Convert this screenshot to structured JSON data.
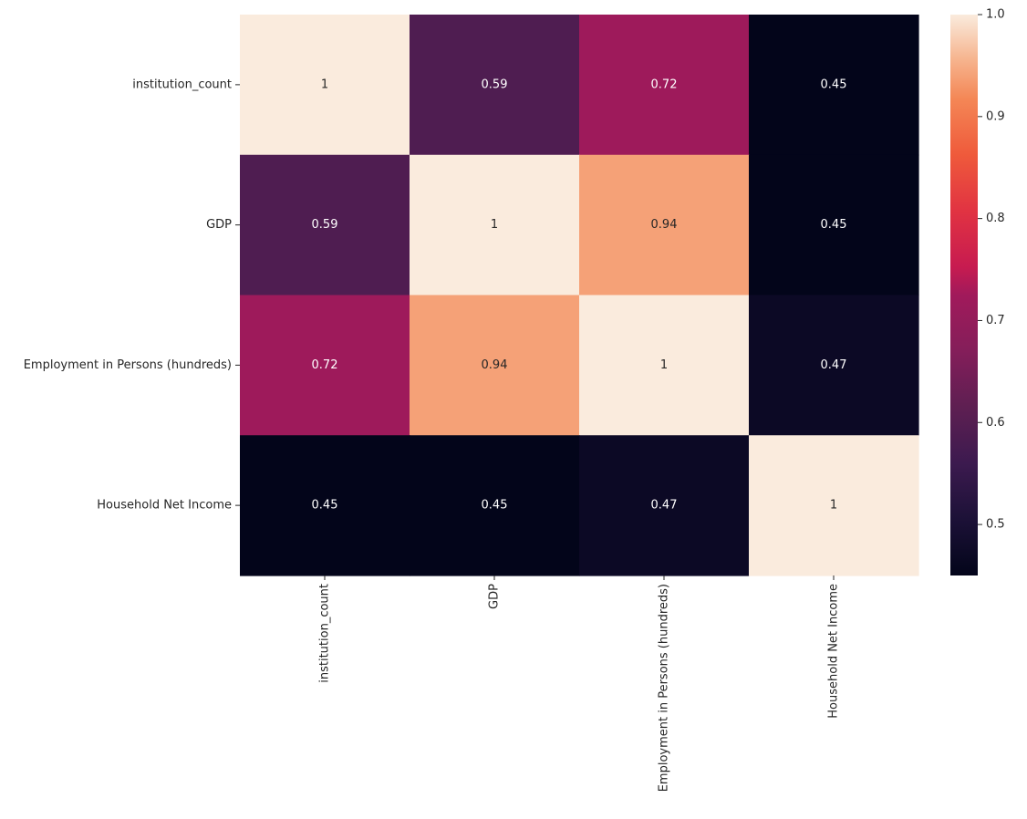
{
  "chart_data": {
    "type": "heatmap",
    "title": "",
    "xlabel": "",
    "ylabel": "",
    "row_labels": [
      "institution_count",
      "GDP",
      "Employment in Persons (hundreds)",
      "Household Net Income"
    ],
    "col_labels": [
      "institution_count",
      "GDP",
      "Employment in Persons (hundreds)",
      "Household Net Income"
    ],
    "values": [
      [
        1,
        0.59,
        0.72,
        0.45
      ],
      [
        0.59,
        1,
        0.94,
        0.45
      ],
      [
        0.72,
        0.94,
        1,
        0.47
      ],
      [
        0.45,
        0.45,
        0.47,
        1
      ]
    ],
    "cell_labels": [
      [
        "1",
        "0.59",
        "0.72",
        "0.45"
      ],
      [
        "0.59",
        "1",
        "0.94",
        "0.45"
      ],
      [
        "0.72",
        "0.94",
        "1",
        "0.47"
      ],
      [
        "0.45",
        "0.45",
        "0.47",
        "1"
      ]
    ],
    "colormap": "rocket",
    "vmin": 0.45,
    "vmax": 1.0,
    "colorbar_ticks": [
      0.5,
      0.6,
      0.7,
      0.8,
      0.9,
      1.0
    ],
    "colorbar_tick_labels": [
      "0.5",
      "0.6",
      "0.7",
      "0.8",
      "0.9",
      "1.0"
    ],
    "colormap_stops": [
      [
        0.0,
        "#03051a"
      ],
      [
        0.1,
        "#1c1137"
      ],
      [
        0.2,
        "#3c1a4f"
      ],
      [
        0.3,
        "#5e1f52"
      ],
      [
        0.4,
        "#841e5a"
      ],
      [
        0.5,
        "#a11a5b"
      ],
      [
        0.55,
        "#c71b50"
      ],
      [
        0.65,
        "#e13342"
      ],
      [
        0.75,
        "#ef5a3b"
      ],
      [
        0.85,
        "#f48756"
      ],
      [
        0.92,
        "#f6b48e"
      ],
      [
        1.0,
        "#faebdd"
      ]
    ]
  }
}
